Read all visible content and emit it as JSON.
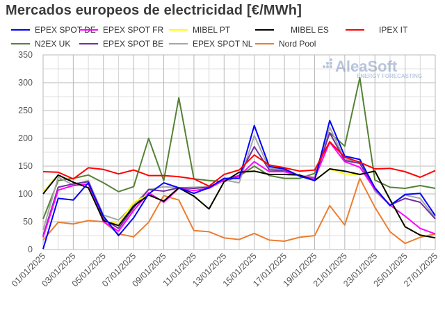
{
  "chart_data": {
    "type": "line",
    "title": "Mercados europeos de electricidad [€/MWh]",
    "xlabel": "",
    "ylabel": "",
    "ylim": [
      0,
      350
    ],
    "yticks": [
      0,
      50,
      100,
      150,
      200,
      250,
      300,
      350
    ],
    "grid": true,
    "legend_position": "top",
    "watermark": "AleaSoft ENERGY FORECASTING",
    "x": [
      "01/01/2025",
      "02/01/2025",
      "03/01/2025",
      "04/01/2025",
      "05/01/2025",
      "06/01/2025",
      "07/01/2025",
      "08/01/2025",
      "09/01/2025",
      "10/01/2025",
      "11/01/2025",
      "12/01/2025",
      "13/01/2025",
      "14/01/2025",
      "15/01/2025",
      "16/01/2025",
      "17/01/2025",
      "18/01/2025",
      "19/01/2025",
      "20/01/2025",
      "21/01/2025",
      "22/01/2025",
      "23/01/2025",
      "24/01/2025",
      "25/01/2025",
      "26/01/2025",
      "27/01/2025"
    ],
    "xtick_labels": [
      "01/01/2025",
      "03/01/2025",
      "05/01/2025",
      "07/01/2025",
      "09/01/2025",
      "11/01/2025",
      "13/01/2025",
      "15/01/2025",
      "17/01/2025",
      "19/01/2025",
      "21/01/2025",
      "23/01/2025",
      "25/01/2025",
      "27/01/2025"
    ],
    "series": [
      {
        "name": "N2EX UK",
        "color": "#548235",
        "values": [
          55,
          124,
          128,
          134,
          120,
          104,
          113,
          200,
          124,
          273,
          127,
          124,
          122,
          132,
          150,
          133,
          128,
          128,
          137,
          210,
          186,
          309,
          125,
          112,
          110,
          115,
          110
        ]
      },
      {
        "name": "Nord Pool",
        "color": "#ed7d31",
        "values": [
          17,
          49,
          46,
          52,
          50,
          28,
          23,
          49,
          97,
          89,
          34,
          32,
          21,
          18,
          29,
          17,
          15,
          22,
          25,
          79,
          44,
          128,
          76,
          32,
          11,
          22,
          28
        ]
      },
      {
        "name": "EPEX SPOT NL",
        "color": "#a6a6a6",
        "values": [
          35,
          130,
          116,
          124,
          62,
          53,
          80,
          108,
          113,
          111,
          112,
          113,
          125,
          120,
          205,
          145,
          145,
          133,
          130,
          220,
          162,
          158,
          105,
          80,
          98,
          92,
          57
        ]
      },
      {
        "name": "EPEX SPOT BE",
        "color": "#7030a0",
        "values": [
          25,
          112,
          118,
          122,
          55,
          38,
          75,
          108,
          105,
          111,
          110,
          112,
          126,
          133,
          185,
          143,
          142,
          133,
          128,
          210,
          160,
          155,
          108,
          80,
          92,
          85,
          55
        ]
      },
      {
        "name": "EPEX SPOT FR",
        "color": "#ff00ff",
        "values": [
          22,
          107,
          115,
          118,
          50,
          33,
          70,
          102,
          85,
          110,
          106,
          110,
          125,
          132,
          158,
          140,
          140,
          133,
          128,
          193,
          158,
          148,
          108,
          80,
          60,
          38,
          28
        ]
      },
      {
        "name": "MIBEL PT",
        "color": "#ffff00",
        "values": [
          104,
          134,
          121,
          111,
          52,
          46,
          85,
          98,
          87,
          111,
          96,
          73,
          122,
          139,
          141,
          135,
          135,
          134,
          124,
          145,
          136,
          135,
          141,
          90,
          41,
          26,
          21
        ]
      },
      {
        "name": "MIBEL ES",
        "color": "#000000",
        "values": [
          100,
          134,
          121,
          111,
          52,
          43,
          78,
          98,
          87,
          111,
          96,
          73,
          122,
          139,
          141,
          135,
          135,
          134,
          124,
          145,
          141,
          135,
          141,
          90,
          41,
          26,
          21
        ]
      },
      {
        "name": "EPEX SPOT DE",
        "color": "#0000ff",
        "values": [
          1,
          92,
          89,
          120,
          60,
          25,
          57,
          100,
          120,
          111,
          101,
          111,
          128,
          128,
          223,
          149,
          145,
          132,
          124,
          232,
          168,
          162,
          111,
          79,
          99,
          101,
          61
        ]
      },
      {
        "name": "IPEX IT",
        "color": "#ff0000",
        "values": [
          140,
          139,
          127,
          147,
          144,
          136,
          143,
          133,
          133,
          131,
          127,
          114,
          135,
          143,
          170,
          152,
          147,
          141,
          143,
          194,
          166,
          157,
          145,
          146,
          140,
          130,
          142
        ]
      }
    ],
    "legend": [
      {
        "name": "EPEX SPOT DE",
        "color": "#0000ff"
      },
      {
        "name": "EPEX SPOT FR",
        "color": "#ff00ff"
      },
      {
        "name": "MIBEL PT",
        "color": "#ffff00"
      },
      {
        "name": "MIBEL ES",
        "color": "#000000"
      },
      {
        "name": "IPEX IT",
        "color": "#ff0000"
      },
      {
        "name": "N2EX UK",
        "color": "#548235"
      },
      {
        "name": "EPEX SPOT BE",
        "color": "#7030a0"
      },
      {
        "name": "EPEX SPOT NL",
        "color": "#a6a6a6"
      },
      {
        "name": "Nord Pool",
        "color": "#ed7d31"
      }
    ]
  }
}
